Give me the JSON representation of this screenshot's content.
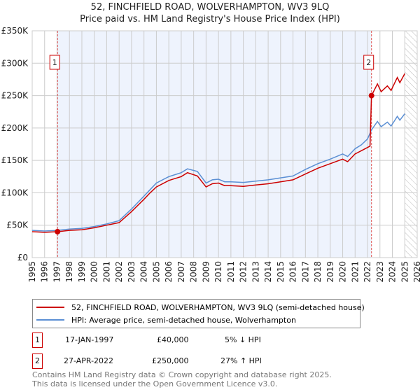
{
  "chart_data": {
    "type": "line",
    "title": "52, FINCHFIELD ROAD, WOLVERHAMPTON, WV3 9LQ",
    "subtitle": "Price paid vs. HM Land Registry's House Price Index (HPI)",
    "xlim": [
      1995,
      2026
    ],
    "ylim": [
      0,
      350000
    ],
    "x_ticks": [
      "1995",
      "1996",
      "1997",
      "1998",
      "1999",
      "2000",
      "2001",
      "2002",
      "2003",
      "2004",
      "2005",
      "2006",
      "2007",
      "2008",
      "2009",
      "2010",
      "2011",
      "2012",
      "2013",
      "2014",
      "2015",
      "2016",
      "2017",
      "2018",
      "2019",
      "2020",
      "2021",
      "2022",
      "2023",
      "2024",
      "2025",
      "2026"
    ],
    "y_ticks": [
      {
        "v": 0,
        "label": "£0"
      },
      {
        "v": 50000,
        "label": "£50K"
      },
      {
        "v": 100000,
        "label": "£100K"
      },
      {
        "v": 150000,
        "label": "£150K"
      },
      {
        "v": 200000,
        "label": "£200K"
      },
      {
        "v": 250000,
        "label": "£250K"
      },
      {
        "v": 300000,
        "label": "£300K"
      },
      {
        "v": 350000,
        "label": "£350K"
      }
    ],
    "grid": true,
    "forecast_hatch_from": 2025,
    "series": [
      {
        "name": "52, FINCHFIELD ROAD, WOLVERHAMPTON, WV3 9LQ (semi-detached house)",
        "color": "#cc0000",
        "x": [
          1995,
          1996,
          1997.04,
          1998,
          1999,
          2000,
          2001,
          2002,
          2003,
          2004,
          2004.5,
          2005,
          2006,
          2007,
          2007.5,
          2008.3,
          2009,
          2009.5,
          2010,
          2010.5,
          2011,
          2012,
          2013,
          2014,
          2015,
          2016,
          2017,
          2018,
          2019,
          2020,
          2020.4,
          2021,
          2021.5,
          2022.2,
          2022.32,
          2022.8,
          2023.1,
          2023.6,
          2023.9,
          2024.4,
          2024.6,
          2025
        ],
        "y": [
          40000,
          39000,
          40000,
          42000,
          43000,
          46000,
          50000,
          54000,
          71000,
          90000,
          100000,
          109000,
          119000,
          125000,
          131000,
          126000,
          109000,
          114000,
          115000,
          111000,
          111000,
          110000,
          112000,
          114000,
          117000,
          120000,
          129000,
          138000,
          145000,
          152000,
          148000,
          160000,
          165000,
          172000,
          250000,
          268000,
          256000,
          265000,
          258000,
          278000,
          270000,
          284000
        ]
      },
      {
        "name": "HPI: Average price, semi-detached house, Wolverhampton",
        "color": "#5b8fd4",
        "x": [
          1995,
          1996,
          1997,
          1998,
          1999,
          2000,
          2001,
          2002,
          2003,
          2004,
          2004.5,
          2005,
          2006,
          2007,
          2007.5,
          2008.3,
          2009,
          2009.5,
          2010,
          2010.5,
          2011,
          2012,
          2013,
          2014,
          2015,
          2016,
          2017,
          2018,
          2019,
          2020,
          2020.4,
          2021,
          2021.5,
          2022,
          2022.32,
          2022.8,
          2023.1,
          2023.6,
          2023.9,
          2024.4,
          2024.6,
          2025
        ],
        "y": [
          42000,
          41000,
          42000,
          44000,
          45000,
          48000,
          52000,
          57000,
          75000,
          95000,
          105000,
          115000,
          125000,
          131000,
          137000,
          133000,
          115000,
          120000,
          121000,
          117000,
          117000,
          116000,
          118000,
          120000,
          123000,
          126000,
          136000,
          145000,
          152000,
          160000,
          156000,
          168000,
          174000,
          183000,
          197000,
          210000,
          202000,
          209000,
          203000,
          218000,
          212000,
          222000
        ]
      }
    ],
    "sales": [
      {
        "id": "1",
        "x": 1997.04,
        "price": 40000
      },
      {
        "id": "2",
        "x": 2022.32,
        "price": 250000
      }
    ]
  },
  "legend": {
    "property": "52, FINCHFIELD ROAD, WOLVERHAMPTON, WV3 9LQ (semi-detached house)",
    "hpi": "HPI: Average price, semi-detached house, Wolverhampton"
  },
  "transactions": [
    {
      "id": "1",
      "date": "17-JAN-1997",
      "price": "£40,000",
      "delta": "5% ↓ HPI"
    },
    {
      "id": "2",
      "date": "27-APR-2022",
      "price": "£250,000",
      "delta": "27% ↑ HPI"
    }
  ],
  "footer": {
    "line1": "Contains HM Land Registry data © Crown copyright and database right 2025.",
    "line2": "This data is licensed under the Open Government Licence v3.0."
  }
}
